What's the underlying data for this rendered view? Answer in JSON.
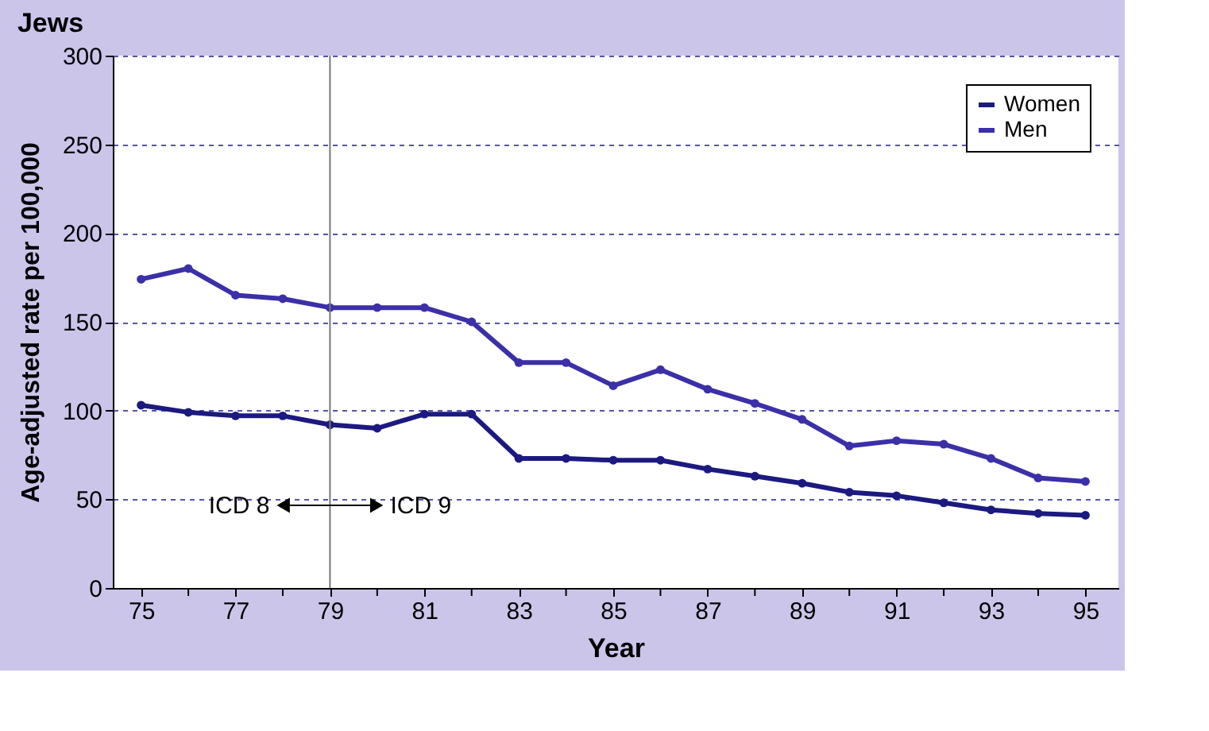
{
  "chart_data": {
    "type": "line",
    "title": "Jews",
    "xlabel": "Year",
    "ylabel": "Age-adjusted rate per 100,000",
    "x": [
      75,
      76,
      77,
      78,
      79,
      80,
      81,
      82,
      83,
      84,
      85,
      86,
      87,
      88,
      89,
      90,
      91,
      92,
      93,
      94,
      95
    ],
    "series": [
      {
        "name": "Women",
        "color": "#1c1a80",
        "values": [
          103,
          99,
          97,
          97,
          92,
          90,
          98,
          98,
          73,
          73,
          72,
          72,
          67,
          63,
          59,
          54,
          52,
          48,
          44,
          42,
          41
        ]
      },
      {
        "name": "Men",
        "color": "#3b30a8",
        "values": [
          174,
          180,
          165,
          163,
          158,
          158,
          158,
          150,
          127,
          127,
          114,
          123,
          112,
          104,
          95,
          80,
          83,
          81,
          73,
          62,
          60
        ]
      }
    ],
    "xlim": [
      74.4,
      95.7
    ],
    "ylim": [
      0,
      300
    ],
    "xticks": [
      75,
      {
        "value": 76,
        "label": null
      },
      77,
      {
        "value": 78,
        "label": null
      },
      79,
      {
        "value": 80,
        "label": null
      },
      81,
      {
        "value": 82,
        "label": null
      },
      83,
      {
        "value": 84,
        "label": null
      },
      85,
      {
        "value": 86,
        "label": null
      },
      87,
      {
        "value": 88,
        "label": null
      },
      89,
      {
        "value": 90,
        "label": null
      },
      91,
      {
        "value": 92,
        "label": null
      },
      93,
      {
        "value": 94,
        "label": null
      },
      95
    ],
    "yticks": [
      0,
      50,
      100,
      150,
      200,
      250,
      300
    ],
    "grid": "y",
    "legend": "top right",
    "marker": "circle",
    "line_style": "solid",
    "ref_lines": [
      {
        "axis": "x",
        "value": 79,
        "color": "#777777"
      }
    ],
    "annotations": [
      "ICD 8",
      "ICD 9"
    ]
  }
}
